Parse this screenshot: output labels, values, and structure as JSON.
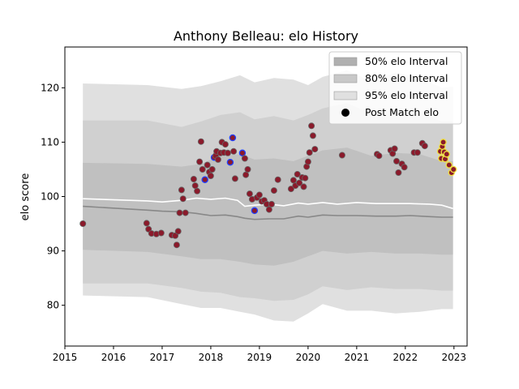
{
  "chart_data": {
    "type": "line",
    "title": "Anthony Belleau: elo History",
    "xlabel": "",
    "ylabel": "elo score",
    "xlim": [
      2015.0,
      2023.27
    ],
    "ylim": [
      72.5,
      127.5
    ],
    "x_ticks": [
      2015,
      2016,
      2017,
      2018,
      2019,
      2020,
      2021,
      2022,
      2023
    ],
    "y_ticks": [
      80,
      90,
      100,
      110,
      120
    ],
    "legend_position": "top-right",
    "legend": [
      {
        "label": "50% elo Interval",
        "kind": "band",
        "color": "#b0b0b0"
      },
      {
        "label": "80% elo Interval",
        "kind": "band",
        "color": "#c8c8c8"
      },
      {
        "label": "95% elo Interval",
        "kind": "band",
        "color": "#e0e0e0"
      },
      {
        "label": "Post Match elo",
        "kind": "marker",
        "color": "#000000"
      }
    ],
    "colors": {
      "band95": "#e0e0e0",
      "band80": "#d0d0d0",
      "band50": "#c0c0c0",
      "mean_line": "#ffffff",
      "median_line": "#888888",
      "point_fill": "#8b1a2b",
      "point_edge_default": "#666666",
      "point_edge_blue": "#1f3fff",
      "point_edge_yellow": "#f0e040"
    },
    "bands": {
      "x": [
        2015.37,
        2016.7,
        2017.4,
        2017.8,
        2018.2,
        2018.6,
        2018.9,
        2019.3,
        2019.7,
        2020.0,
        2020.3,
        2020.8,
        2021.3,
        2021.8,
        2022.3,
        2022.75,
        2022.98
      ],
      "b95_upper": [
        120.8,
        120.5,
        119.8,
        120.3,
        121.2,
        122.3,
        121.0,
        121.8,
        121.5,
        120.5,
        122.0,
        123.2,
        121.2,
        122.8,
        121.8,
        120.0,
        120.2
      ],
      "b95_lower": [
        81.8,
        81.5,
        80.2,
        79.5,
        79.5,
        78.8,
        78.3,
        77.2,
        77.0,
        78.5,
        80.2,
        79.0,
        79.0,
        78.5,
        78.8,
        79.3,
        79.3
      ],
      "b80_upper": [
        114.0,
        114.0,
        112.8,
        113.8,
        115.0,
        115.5,
        114.2,
        114.8,
        114.0,
        115.0,
        116.2,
        117.2,
        115.2,
        116.0,
        115.5,
        113.8,
        113.8
      ],
      "b80_lower": [
        84.0,
        84.0,
        83.2,
        82.5,
        82.3,
        81.5,
        81.3,
        80.8,
        81.0,
        82.0,
        83.5,
        82.8,
        83.3,
        83.0,
        83.0,
        82.7,
        82.7
      ],
      "b50_upper": [
        106.2,
        106.0,
        105.5,
        106.0,
        107.5,
        107.8,
        106.8,
        107.0,
        106.5,
        107.5,
        108.5,
        109.0,
        107.5,
        108.0,
        107.8,
        106.5,
        106.5
      ],
      "b50_lower": [
        90.2,
        89.8,
        89.0,
        88.5,
        88.5,
        88.0,
        87.5,
        87.3,
        88.0,
        89.0,
        90.0,
        89.5,
        89.8,
        89.5,
        89.5,
        89.3,
        89.3
      ]
    },
    "series": [
      {
        "kind": "mean",
        "x": [
          2015.37,
          2016.7,
          2017.0,
          2017.4,
          2017.7,
          2018.0,
          2018.3,
          2018.55,
          2018.7,
          2018.9,
          2019.2,
          2019.5,
          2019.8,
          2020.0,
          2020.3,
          2020.6,
          2021.0,
          2021.4,
          2021.8,
          2022.1,
          2022.5,
          2022.75,
          2022.98
        ],
        "values": [
          99.6,
          99.2,
          99.0,
          99.3,
          99.7,
          99.5,
          99.7,
          99.3,
          98.2,
          98.4,
          98.6,
          98.3,
          98.8,
          98.6,
          98.9,
          98.6,
          98.9,
          98.7,
          98.7,
          98.7,
          98.6,
          98.4,
          97.8
        ]
      },
      {
        "kind": "median",
        "x": [
          2015.37,
          2016.7,
          2017.0,
          2017.4,
          2017.7,
          2018.0,
          2018.3,
          2018.55,
          2018.7,
          2018.9,
          2019.2,
          2019.5,
          2019.8,
          2020.0,
          2020.3,
          2020.6,
          2021.0,
          2021.4,
          2021.8,
          2022.1,
          2022.5,
          2022.75,
          2022.98
        ],
        "values": [
          98.2,
          97.5,
          97.3,
          97.2,
          96.9,
          96.5,
          96.6,
          96.3,
          96.0,
          95.8,
          95.9,
          95.9,
          96.4,
          96.2,
          96.6,
          96.5,
          96.5,
          96.4,
          96.4,
          96.5,
          96.3,
          96.2,
          96.2
        ]
      },
      {
        "kind": "points",
        "name": "Post Match elo",
        "x": [
          2015.37,
          2016.68,
          2016.72,
          2016.78,
          2016.88,
          2016.98,
          2017.2,
          2017.27,
          2017.3,
          2017.33,
          2017.36,
          2017.4,
          2017.43,
          2017.48,
          2017.65,
          2017.68,
          2017.72,
          2017.77,
          2017.8,
          2017.83,
          2017.88,
          2017.93,
          2017.97,
          2018.0,
          2018.03,
          2018.07,
          2018.1,
          2018.12,
          2018.15,
          2018.2,
          2018.23,
          2018.27,
          2018.3,
          2018.35,
          2018.4,
          2018.45,
          2018.47,
          2018.5,
          2018.65,
          2018.7,
          2018.72,
          2018.76,
          2018.8,
          2018.85,
          2018.9,
          2018.95,
          2019.0,
          2019.05,
          2019.1,
          2019.15,
          2019.2,
          2019.25,
          2019.3,
          2019.38,
          2019.65,
          2019.7,
          2019.74,
          2019.78,
          2019.82,
          2019.88,
          2019.91,
          2019.94,
          2019.97,
          2020.0,
          2020.03,
          2020.07,
          2020.1,
          2020.14,
          2020.7,
          2021.42,
          2021.46,
          2021.7,
          2021.74,
          2021.78,
          2021.82,
          2021.86,
          2021.93,
          2021.98,
          2022.18,
          2022.25,
          2022.35,
          2022.4,
          2022.72,
          2022.74,
          2022.76,
          2022.78,
          2022.8,
          2022.82,
          2022.85,
          2022.9,
          2022.95,
          2022.99
        ],
        "values": [
          95.0,
          95.1,
          94.0,
          93.2,
          93.1,
          93.3,
          92.9,
          92.8,
          91.1,
          93.6,
          97.0,
          101.2,
          99.6,
          97.0,
          103.2,
          102.0,
          101.0,
          106.4,
          110.1,
          105.0,
          103.1,
          105.8,
          104.5,
          103.8,
          105.0,
          107.2,
          107.5,
          108.3,
          106.8,
          108.0,
          110.0,
          108.1,
          109.6,
          108.0,
          106.3,
          110.8,
          108.3,
          103.3,
          108.0,
          107.0,
          104.0,
          105.0,
          100.5,
          99.5,
          97.4,
          99.8,
          100.3,
          99.1,
          99.3,
          98.6,
          97.6,
          98.6,
          101.1,
          103.1,
          101.4,
          103.0,
          102.0,
          104.1,
          102.5,
          103.5,
          101.8,
          103.4,
          105.5,
          106.4,
          108.1,
          113.0,
          111.2,
          108.7,
          107.6,
          107.8,
          107.5,
          108.5,
          107.9,
          108.8,
          106.5,
          104.4,
          106.0,
          105.4,
          108.1,
          108.1,
          109.8,
          109.3,
          108.3,
          107.0,
          109.2,
          110.0,
          108.2,
          106.9,
          107.8,
          105.8,
          104.4,
          105.0
        ],
        "edge": [
          "d",
          "d",
          "d",
          "d",
          "d",
          "d",
          "d",
          "d",
          "d",
          "d",
          "d",
          "d",
          "d",
          "d",
          "d",
          "d",
          "d",
          "d",
          "d",
          "d",
          "b",
          "d",
          "d",
          "d",
          "d",
          "b",
          "d",
          "d",
          "d",
          "d",
          "d",
          "d",
          "d",
          "d",
          "b",
          "b",
          "d",
          "d",
          "b",
          "d",
          "d",
          "d",
          "d",
          "d",
          "b",
          "d",
          "d",
          "d",
          "d",
          "d",
          "d",
          "d",
          "d",
          "d",
          "d",
          "d",
          "d",
          "d",
          "d",
          "d",
          "d",
          "d",
          "d",
          "d",
          "d",
          "d",
          "d",
          "d",
          "d",
          "d",
          "d",
          "d",
          "d",
          "d",
          "d",
          "d",
          "d",
          "d",
          "d",
          "d",
          "d",
          "d",
          "y",
          "y",
          "y",
          "y",
          "y",
          "y",
          "y",
          "y",
          "y",
          "y"
        ]
      }
    ]
  }
}
